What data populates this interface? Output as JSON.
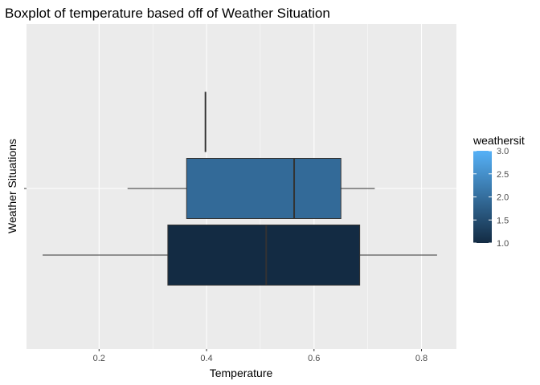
{
  "chart_data": {
    "type": "boxplot",
    "title": "Boxplot of temperature based off of Weather Situation",
    "xlabel": "Temperature",
    "ylabel": "Weather Situations",
    "xlim": [
      0.065,
      0.865
    ],
    "x_ticks": [
      0.2,
      0.4,
      0.6,
      0.8
    ],
    "x_tick_labels": [
      "0.2",
      "0.4",
      "0.6",
      "0.8"
    ],
    "grid": true,
    "legend": {
      "title": "weathersit",
      "position": "right",
      "range": [
        1.0,
        3.0
      ],
      "ticks": [
        1.0,
        1.5,
        2.0,
        2.5,
        3.0
      ],
      "tick_labels": [
        "1.0",
        "1.5",
        "2.0",
        "2.5",
        "3.0"
      ],
      "color_low": "#132B43",
      "color_high": "#56B1F7"
    },
    "series": [
      {
        "weathersit": 3,
        "min": 0.398,
        "q1": 0.398,
        "median": 0.398,
        "q3": 0.398,
        "max": 0.398,
        "color": "#56B1F7",
        "level": 1
      },
      {
        "weathersit": 2,
        "min": 0.253,
        "q1": 0.363,
        "median": 0.563,
        "q3": 0.65,
        "max": 0.713,
        "color": "#336A98",
        "level": 0
      },
      {
        "weathersit": 1,
        "min": 0.095,
        "q1": 0.328,
        "median": 0.511,
        "q3": 0.685,
        "max": 0.829,
        "color": "#132B43",
        "level": -1
      }
    ]
  }
}
